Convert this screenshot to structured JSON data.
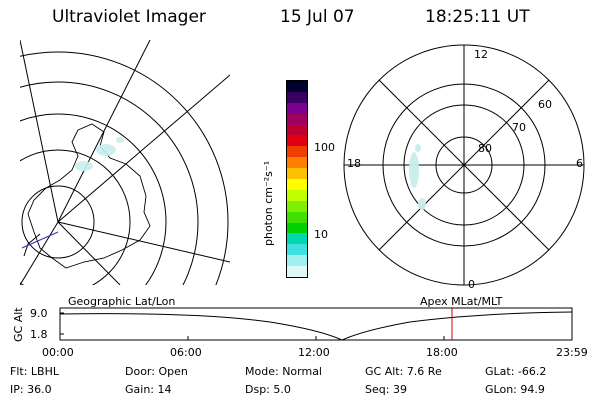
{
  "header": {
    "title": "Ultraviolet Imager",
    "date": "15 Jul 07",
    "time": "18:25:11 UT"
  },
  "colorbar": {
    "unit_label": "photon cm⁻²s⁻¹",
    "ticks": [
      {
        "label": "100",
        "value": 100
      },
      {
        "label": "10",
        "value": 10
      }
    ],
    "colors": [
      "#000030",
      "#3a0060",
      "#7a0090",
      "#a00060",
      "#c00030",
      "#e00010",
      "#f04000",
      "#ff8000",
      "#ffc000",
      "#ffff00",
      "#c0ff00",
      "#80f000",
      "#40e000",
      "#00d000",
      "#00d8b0",
      "#40e0e0",
      "#a0f0f0",
      "#e0f8f8"
    ]
  },
  "geo_map": {
    "caption": "Geographic Lat/Lon"
  },
  "polar_plot": {
    "caption": "Apex  MLat/MLT",
    "mlt_labels": {
      "top": "12",
      "bottom": "0",
      "left": "18",
      "right": "6"
    },
    "mlat_labels": [
      "60",
      "70",
      "80"
    ]
  },
  "altitude_plot": {
    "ylabel": "GC Alt",
    "y_ticks": [
      "9.0",
      "1.8"
    ],
    "x_ticks": [
      "00:00",
      "06:00",
      "12:00",
      "18:00",
      "23:59"
    ],
    "marker_time": "18:25",
    "marker_color": "#d00000"
  },
  "status": {
    "row1": [
      {
        "key": "Flt:",
        "value": "LBHL"
      },
      {
        "key": "Door:",
        "value": "Open"
      },
      {
        "key": "Mode:",
        "value": "Normal"
      },
      {
        "key": "GC Alt:",
        "value": "7.6 Re"
      },
      {
        "key": "GLat:",
        "value": "-66.2"
      }
    ],
    "row2": [
      {
        "key": "IP:",
        "value": "36.0"
      },
      {
        "key": "Gain:",
        "value": "14"
      },
      {
        "key": "Dsp:",
        "value": "5.0"
      },
      {
        "key": "Seq:",
        "value": "39"
      },
      {
        "key": "GLon:",
        "value": "94.9"
      }
    ]
  }
}
